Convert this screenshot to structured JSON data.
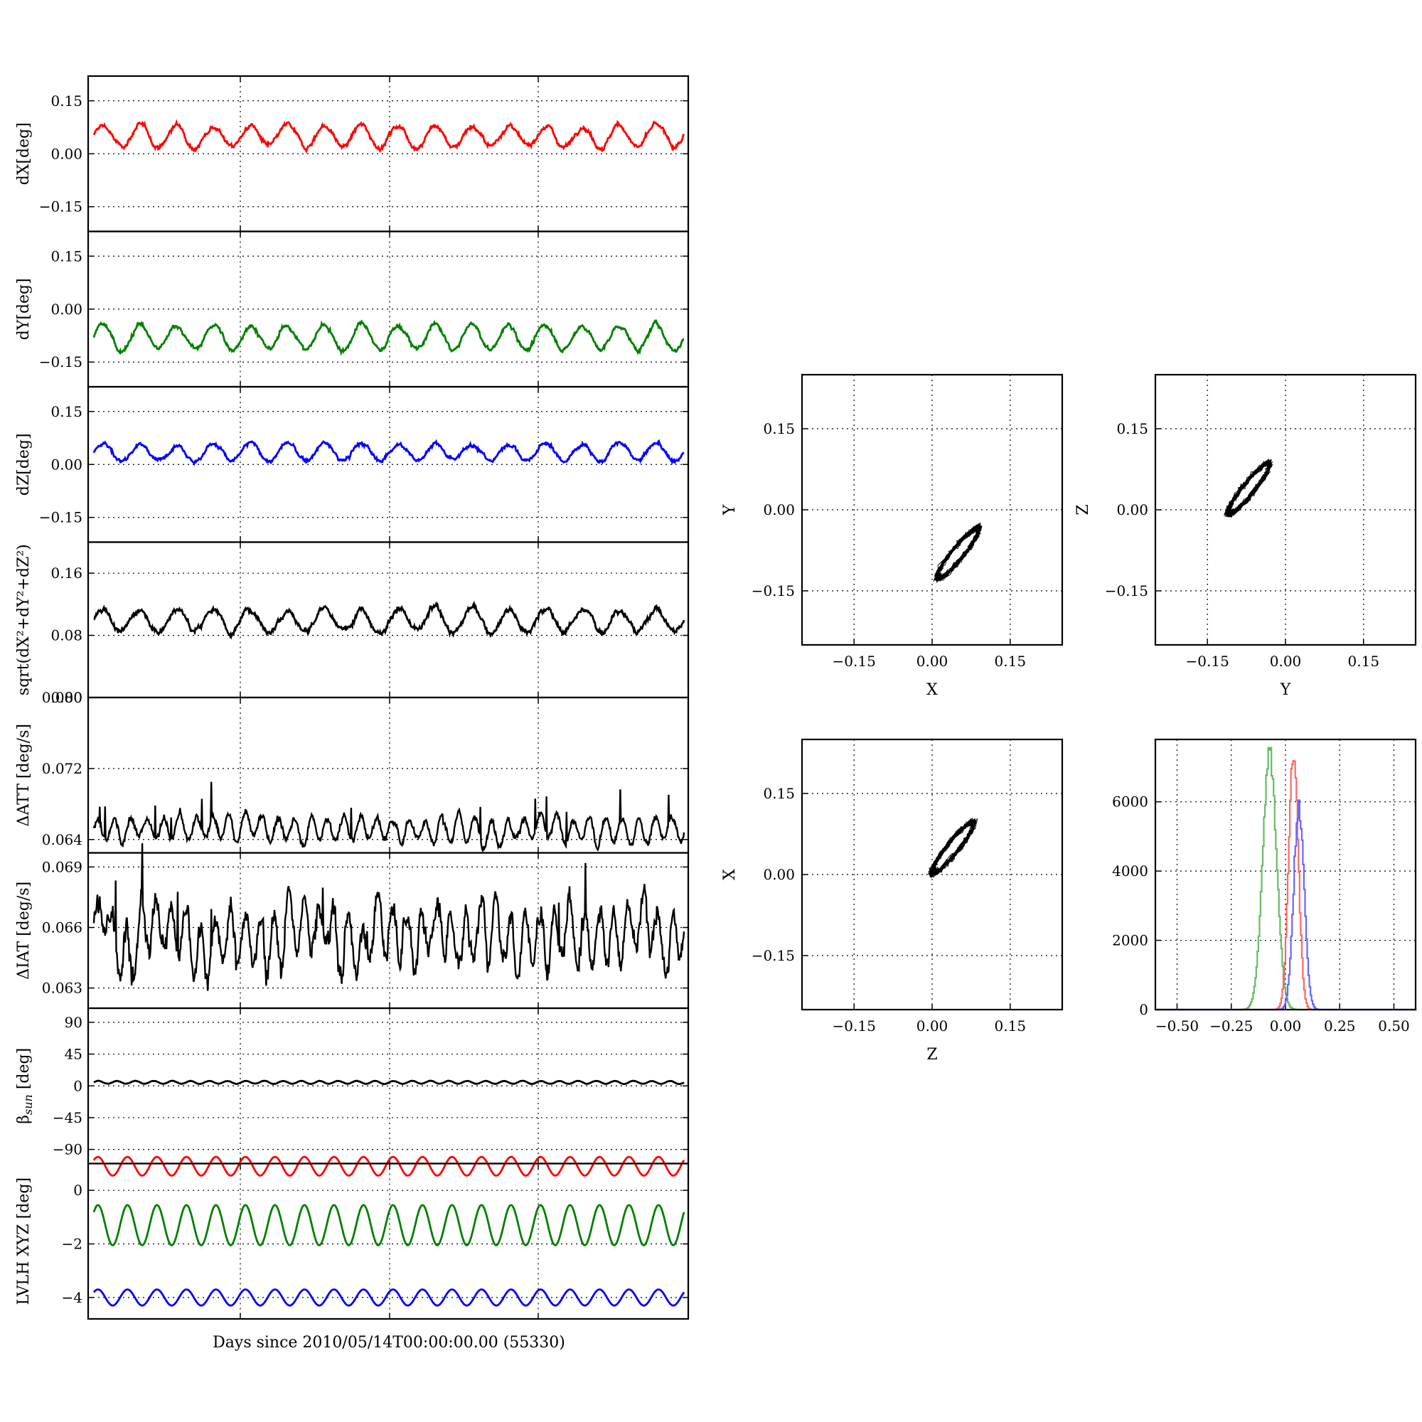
{
  "figure_xlabel": "Days since 2010/05/14T00:00:00.00 (55330)",
  "chart_data": [
    {
      "id": "dx",
      "type": "line",
      "ylabel": "dX[deg]",
      "ylim": [
        -0.22,
        0.22
      ],
      "yticks": [
        "0.15",
        "0.00",
        "−0.15"
      ],
      "ytick_values": [
        0.15,
        0.0,
        -0.15
      ],
      "color": "#ff0000",
      "signal": {
        "base": 0.05,
        "amp": 0.03,
        "cycles": 16,
        "noise": 0.008
      }
    },
    {
      "id": "dy",
      "type": "line",
      "ylabel": "dY[deg]",
      "ylim": [
        -0.22,
        0.22
      ],
      "yticks": [
        "0.15",
        "0.00",
        "−0.15"
      ],
      "ytick_values": [
        0.15,
        0.0,
        -0.15
      ],
      "color": "#008000",
      "signal": {
        "base": -0.08,
        "amp": 0.035,
        "cycles": 16,
        "noise": 0.008
      }
    },
    {
      "id": "dz",
      "type": "line",
      "ylabel": "dZ[deg]",
      "ylim": [
        -0.22,
        0.22
      ],
      "yticks": [
        "0.15",
        "0.00",
        "−0.15"
      ],
      "ytick_values": [
        0.15,
        0.0,
        -0.15
      ],
      "color": "#0000ff",
      "signal": {
        "base": 0.035,
        "amp": 0.025,
        "cycles": 16,
        "noise": 0.007
      }
    },
    {
      "id": "dr",
      "type": "line",
      "ylabel": "sqrt(dX²+dY²+dZ²)",
      "ylim": [
        0.0,
        0.2
      ],
      "yticks": [
        "0.16",
        "0.08",
        "0.00"
      ],
      "ytick_values": [
        0.16,
        0.08,
        0.0
      ],
      "color": "#000000",
      "signal": {
        "base": 0.1,
        "amp": 0.015,
        "cycles": 16,
        "noise": 0.005
      }
    },
    {
      "id": "datt",
      "type": "line",
      "ylabel": "ΔATT [deg/s]",
      "ylim": [
        0.0625,
        0.08
      ],
      "yticks": [
        "0.080",
        "0.072",
        "0.064"
      ],
      "ytick_values": [
        0.08,
        0.072,
        0.064
      ],
      "color": "#000000",
      "signal": {
        "base": 0.0652,
        "amp": 0.0013,
        "cycles": 36,
        "noise": 0.0006
      }
    },
    {
      "id": "diat",
      "type": "line",
      "ylabel": "ΔIAT [deg/s]",
      "ylim": [
        0.062,
        0.0697
      ],
      "yticks": [
        "0.069",
        "0.066",
        "0.063"
      ],
      "ytick_values": [
        0.069,
        0.066,
        0.063
      ],
      "color": "#000000",
      "signal": {
        "base": 0.0658,
        "amp": 0.0013,
        "cycles": 40,
        "noise": 0.0009
      }
    },
    {
      "id": "bsun",
      "type": "line",
      "ylabel": "βsun [deg]",
      "ylabel_main": "β",
      "ylabel_sub": "sun",
      "ylabel_unit": " [deg]",
      "ylim": [
        -110,
        110
      ],
      "yticks": [
        "90",
        "45",
        "0",
        "−45",
        "−90"
      ],
      "ytick_values": [
        90,
        45,
        0,
        -45,
        -90
      ],
      "color": "#000000",
      "signal": {
        "base": 5,
        "amp": 2,
        "cycles": 32,
        "noise": 0.3
      }
    },
    {
      "id": "lvlh",
      "type": "line",
      "ylabel": "LVLH XYZ [deg]",
      "ylim": [
        -4.8,
        1.0
      ],
      "yticks": [
        "0",
        "−2",
        "−4"
      ],
      "ytick_values": [
        0,
        -2,
        -4
      ],
      "series": [
        {
          "color": "#ff0000",
          "base": 0.9,
          "amp": 0.35
        },
        {
          "color": "#008000",
          "base": -1.3,
          "amp": 0.75
        },
        {
          "color": "#0000ff",
          "base": -4.0,
          "amp": 0.3
        }
      ],
      "cycles": 20
    },
    {
      "id": "xy",
      "type": "scatter",
      "xlabel": "X",
      "ylabel": "Y",
      "xlim": [
        -0.25,
        0.25
      ],
      "ylim": [
        -0.25,
        0.25
      ],
      "ticks": [
        "−0.15",
        "0.00",
        "0.15"
      ],
      "tick_values": [
        -0.15,
        0.0,
        0.15
      ],
      "center": [
        0.05,
        -0.08
      ]
    },
    {
      "id": "yz",
      "type": "scatter",
      "xlabel": "Y",
      "ylabel": "Z",
      "xlim": [
        -0.25,
        0.25
      ],
      "ylim": [
        -0.25,
        0.25
      ],
      "ticks": [
        "−0.15",
        "0.00",
        "0.15"
      ],
      "tick_values": [
        -0.15,
        0.0,
        0.15
      ],
      "center": [
        -0.07,
        0.04
      ]
    },
    {
      "id": "zx",
      "type": "scatter",
      "xlabel": "Z",
      "ylabel": "X",
      "xlim": [
        -0.25,
        0.25
      ],
      "ylim": [
        -0.25,
        0.25
      ],
      "ticks": [
        "−0.15",
        "0.00",
        "0.15"
      ],
      "tick_values": [
        -0.15,
        0.0,
        0.15
      ],
      "center": [
        0.04,
        0.05
      ]
    },
    {
      "id": "hist",
      "type": "histogram",
      "xlim": [
        -0.6,
        0.6
      ],
      "ylim": [
        0,
        7800
      ],
      "xticks": [
        "−0.50",
        "−0.25",
        "0.00",
        "0.25",
        "0.50"
      ],
      "xtick_values": [
        -0.5,
        -0.25,
        0.0,
        0.25,
        0.5
      ],
      "yticks": [
        "6000",
        "4000",
        "2000",
        "0"
      ],
      "ytick_values": [
        6000,
        4000,
        2000,
        0
      ],
      "series": [
        {
          "color": "#66bb66",
          "center": -0.075,
          "width": 0.032,
          "peak": 7400
        },
        {
          "color": "#ff6666",
          "center": 0.035,
          "width": 0.022,
          "peak": 7500
        },
        {
          "color": "#6666ff",
          "center": 0.06,
          "width": 0.024,
          "peak": 5900
        }
      ]
    }
  ]
}
